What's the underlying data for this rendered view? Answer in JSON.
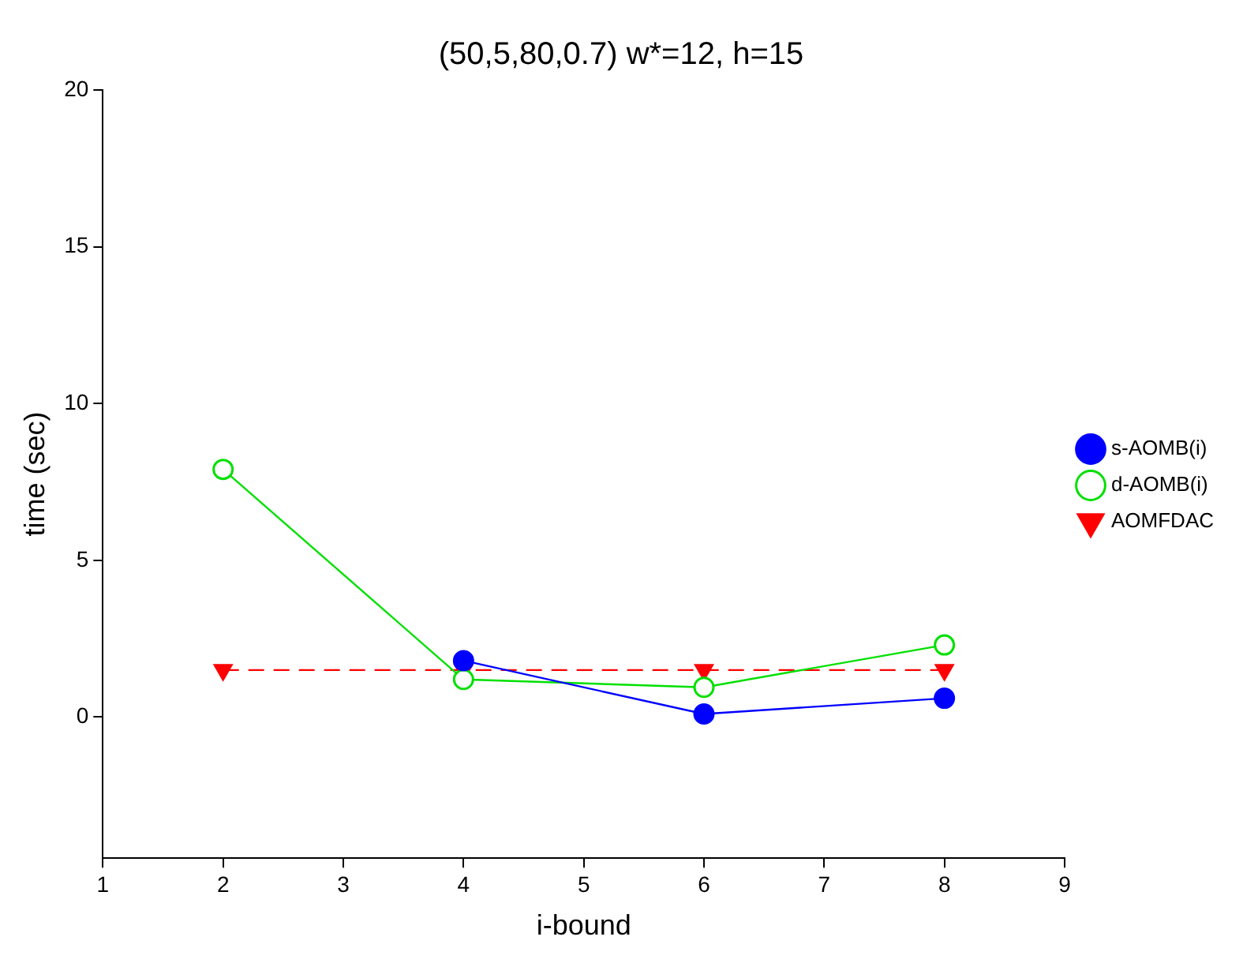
{
  "chart_data": {
    "type": "line",
    "title": "(50,5,80,0.7) w*=12, h=15",
    "xlabel": "i-bound",
    "ylabel": "time (sec)",
    "x": [
      2,
      4,
      6,
      8
    ],
    "series": [
      {
        "name": "s-AOMB(i)",
        "color": "#0000ff",
        "values": [
          null,
          1.8,
          0.1,
          0.6
        ],
        "marker": "circle",
        "line_style": "solid"
      },
      {
        "name": "d-AOMB(i)",
        "color": "#00e000",
        "values": [
          7.9,
          1.2,
          0.95,
          2.3
        ],
        "marker": "circle",
        "line_style": "solid"
      },
      {
        "name": "AOMFDAC",
        "color": "#ff0000",
        "values": [
          1.5,
          1.5,
          1.5,
          1.5
        ],
        "marker": "triangle",
        "line_style": "dashed"
      }
    ],
    "xlim": [
      1,
      9
    ],
    "xticks": [
      1,
      2,
      3,
      4,
      5,
      6,
      7,
      8,
      9
    ],
    "ylim": [
      -4.5,
      20
    ],
    "yticks": [
      0,
      5,
      10,
      15,
      20
    ],
    "grid": false,
    "legend": "right"
  }
}
